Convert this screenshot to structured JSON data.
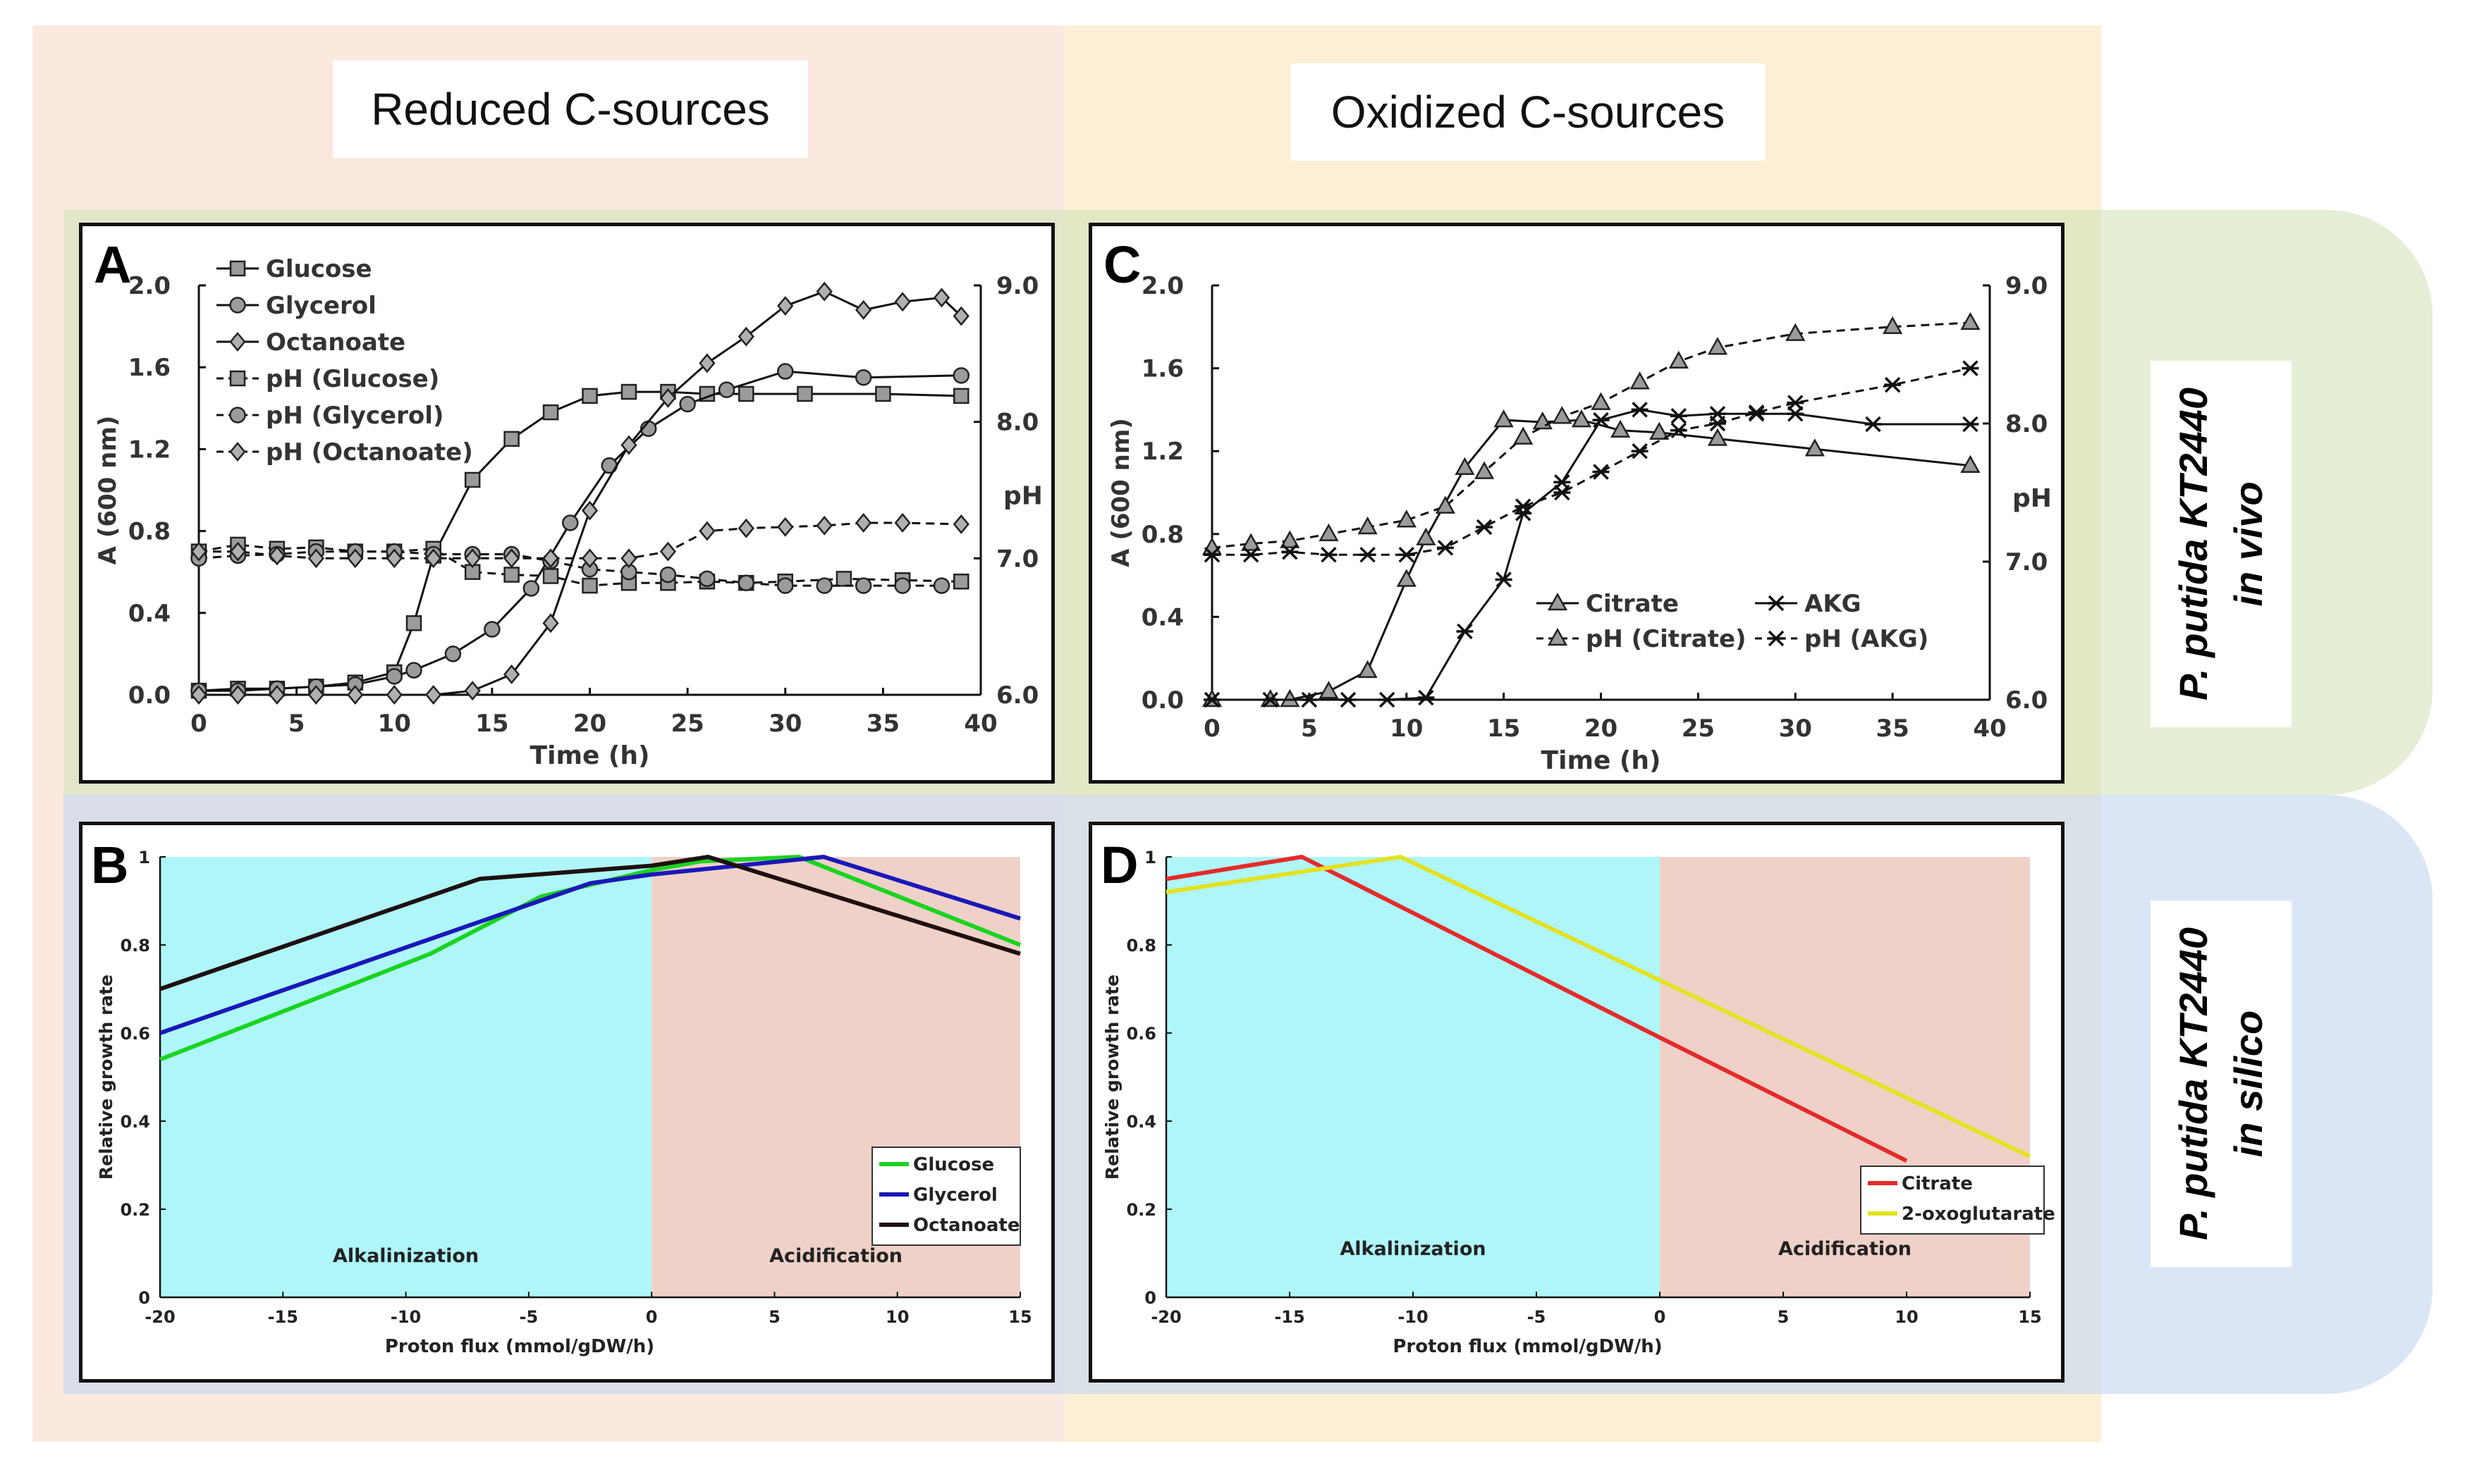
{
  "header": {
    "left": "Reduced C-sources",
    "right": "Oxidized C-sources"
  },
  "side_labels": {
    "top": [
      "P. putida KT2440",
      "in vivo"
    ],
    "bottom": [
      "P. putida KT2440",
      "in silico"
    ]
  },
  "colors": {
    "reduced_bg": "#fbe9e0",
    "oxidized_bg": "#fbf0d6",
    "in_vivo_band": "#e2efd5",
    "in_silico_band": "#dce6f3",
    "alkalinization": "#aff6f9",
    "acidification": "#efd1c8"
  },
  "chart_data": [
    {
      "panel": "A",
      "type": "line",
      "xlabel": "Time (h)",
      "ylabel": "A (600 nm)",
      "y2label": "pH",
      "xlim": [
        0,
        40
      ],
      "ylim": [
        0,
        2.0
      ],
      "y2lim": [
        6.0,
        9.0
      ],
      "xticks": [
        "0",
        "5",
        "10",
        "15",
        "20",
        "25",
        "30",
        "35",
        "40"
      ],
      "yticks": [
        "0.0",
        "0.4",
        "0.8",
        "1.2",
        "1.6",
        "2.0"
      ],
      "y2ticks": [
        "6.0",
        "7.0",
        "8.0",
        "9.0"
      ],
      "series": [
        {
          "name": "Glucose",
          "marker": "square",
          "dash": false,
          "axis": "left",
          "x": [
            0,
            2,
            4,
            6,
            8,
            10,
            11,
            12,
            14,
            16,
            18,
            20,
            22,
            24,
            26,
            28,
            31,
            35,
            39
          ],
          "y": [
            0.02,
            0.03,
            0.03,
            0.04,
            0.06,
            0.11,
            0.35,
            0.68,
            1.05,
            1.25,
            1.38,
            1.46,
            1.48,
            1.48,
            1.47,
            1.47,
            1.47,
            1.47,
            1.46
          ]
        },
        {
          "name": "Glycerol",
          "marker": "circle",
          "dash": false,
          "axis": "left",
          "x": [
            0,
            2,
            4,
            6,
            8,
            10,
            11,
            13,
            15,
            17,
            19,
            21,
            23,
            25,
            27,
            30,
            34,
            39
          ],
          "y": [
            0.02,
            0.02,
            0.03,
            0.04,
            0.05,
            0.09,
            0.12,
            0.2,
            0.32,
            0.52,
            0.84,
            1.12,
            1.3,
            1.42,
            1.49,
            1.58,
            1.55,
            1.56
          ]
        },
        {
          "name": "Octanoate",
          "marker": "diamond",
          "dash": false,
          "axis": "left",
          "x": [
            0,
            2,
            4,
            6,
            8,
            10,
            12,
            14,
            16,
            18,
            20,
            22,
            24,
            26,
            28,
            30,
            32,
            34,
            36,
            38,
            39
          ],
          "y": [
            0.0,
            0.0,
            0.0,
            0.0,
            0.0,
            0.0,
            0.0,
            0.02,
            0.1,
            0.35,
            0.9,
            1.22,
            1.45,
            1.62,
            1.75,
            1.9,
            1.97,
            1.88,
            1.92,
            1.94,
            1.85
          ]
        },
        {
          "name": "pH (Glucose)",
          "marker": "square",
          "dash": true,
          "axis": "right",
          "x": [
            0,
            2,
            4,
            6,
            8,
            10,
            12,
            14,
            16,
            18,
            20,
            22,
            24,
            26,
            28,
            30,
            33,
            36,
            39
          ],
          "y": [
            7.05,
            7.1,
            7.07,
            7.08,
            7.05,
            7.05,
            7.07,
            6.9,
            6.88,
            6.87,
            6.8,
            6.82,
            6.82,
            6.83,
            6.82,
            6.83,
            6.85,
            6.84,
            6.83
          ]
        },
        {
          "name": "pH (Glycerol)",
          "marker": "circle",
          "dash": true,
          "axis": "right",
          "x": [
            0,
            2,
            4,
            6,
            8,
            10,
            12,
            14,
            16,
            18,
            20,
            22,
            24,
            26,
            28,
            30,
            32,
            34,
            36,
            38
          ],
          "y": [
            7.0,
            7.02,
            7.03,
            7.05,
            7.05,
            7.05,
            7.03,
            7.03,
            7.03,
            6.98,
            6.92,
            6.9,
            6.88,
            6.85,
            6.82,
            6.8,
            6.8,
            6.8,
            6.8,
            6.8
          ]
        },
        {
          "name": "pH (Octanoate)",
          "marker": "diamond",
          "dash": true,
          "axis": "right",
          "x": [
            0,
            2,
            4,
            6,
            8,
            10,
            12,
            14,
            16,
            18,
            20,
            22,
            24,
            26,
            28,
            30,
            32,
            34,
            36,
            39
          ],
          "y": [
            7.05,
            7.05,
            7.02,
            7.0,
            7.0,
            7.0,
            7.0,
            7.0,
            7.0,
            7.0,
            7.0,
            7.0,
            7.05,
            7.2,
            7.22,
            7.23,
            7.24,
            7.26,
            7.26,
            7.25
          ]
        }
      ]
    },
    {
      "panel": "C",
      "type": "line",
      "xlabel": "Time (h)",
      "ylabel": "A (600 nm)",
      "y2label": "pH",
      "xlim": [
        0,
        40
      ],
      "ylim": [
        0,
        2.0
      ],
      "y2lim": [
        6.0,
        9.0
      ],
      "xticks": [
        "0",
        "5",
        "10",
        "15",
        "20",
        "25",
        "30",
        "35",
        "40"
      ],
      "yticks": [
        "0.0",
        "0.4",
        "0.8",
        "1.2",
        "1.6",
        "2.0"
      ],
      "y2ticks": [
        "6.0",
        "7.0",
        "8.0",
        "9.0"
      ],
      "series": [
        {
          "name": "Citrate",
          "marker": "triangle",
          "dash": false,
          "axis": "left",
          "x": [
            0,
            3,
            4,
            6,
            8,
            10,
            11,
            13,
            15,
            17,
            19,
            21,
            23,
            26,
            31,
            39
          ],
          "y": [
            0.0,
            0.0,
            0.0,
            0.04,
            0.14,
            0.58,
            0.78,
            1.12,
            1.35,
            1.34,
            1.35,
            1.3,
            1.29,
            1.26,
            1.21,
            1.13
          ]
        },
        {
          "name": "AKG",
          "marker": "asterisk",
          "dash": false,
          "axis": "left",
          "x": [
            0,
            3,
            5,
            7,
            9,
            11,
            13,
            15,
            16,
            18,
            20,
            22,
            24,
            26,
            28,
            30,
            34,
            39
          ],
          "y": [
            0.0,
            0.0,
            0.0,
            0.0,
            0.0,
            0.01,
            0.33,
            0.58,
            0.9,
            1.05,
            1.35,
            1.4,
            1.37,
            1.38,
            1.38,
            1.38,
            1.33,
            1.33
          ]
        },
        {
          "name": "pH (Citrate)",
          "marker": "triangle",
          "dash": true,
          "axis": "right",
          "x": [
            0,
            2,
            4,
            6,
            8,
            10,
            12,
            14,
            16,
            18,
            20,
            22,
            24,
            26,
            30,
            35,
            39
          ],
          "y": [
            7.1,
            7.13,
            7.15,
            7.2,
            7.25,
            7.3,
            7.4,
            7.65,
            7.9,
            8.05,
            8.15,
            8.3,
            8.45,
            8.55,
            8.65,
            8.7,
            8.73
          ]
        },
        {
          "name": "pH (AKG)",
          "marker": "asterisk",
          "dash": true,
          "axis": "right",
          "x": [
            0,
            2,
            4,
            6,
            8,
            10,
            12,
            14,
            16,
            18,
            20,
            22,
            24,
            26,
            28,
            30,
            35,
            39
          ],
          "y": [
            7.05,
            7.05,
            7.07,
            7.05,
            7.05,
            7.05,
            7.1,
            7.25,
            7.4,
            7.5,
            7.65,
            7.8,
            7.95,
            8.0,
            8.08,
            8.15,
            8.28,
            8.4
          ]
        }
      ]
    },
    {
      "panel": "B",
      "type": "line",
      "xlabel": "Proton flux (mmol/gDW/h)",
      "ylabel": "Relative growth rate",
      "xlim": [
        -20,
        15
      ],
      "ylim": [
        0,
        1
      ],
      "xticks": [
        "-20",
        "-15",
        "-10",
        "-5",
        "0",
        "5",
        "10",
        "15"
      ],
      "yticks": [
        "0",
        "0.2",
        "0.4",
        "0.6",
        "0.8",
        "1"
      ],
      "regions": [
        {
          "label": "Alkalinization",
          "from": -20,
          "to": 0,
          "color": "#aff6f9"
        },
        {
          "label": "Acidification",
          "from": 0,
          "to": 15,
          "color": "#efd1c8"
        }
      ],
      "series": [
        {
          "name": "Glucose",
          "color": "#1bd321",
          "x": [
            -20,
            -9,
            -4.5,
            0,
            2,
            6,
            15
          ],
          "y": [
            0.54,
            0.78,
            0.91,
            0.97,
            0.99,
            1.0,
            0.8
          ]
        },
        {
          "name": "Glycerol",
          "color": "#1a18b8",
          "x": [
            -20,
            -2.5,
            0,
            7,
            15
          ],
          "y": [
            0.6,
            0.94,
            0.96,
            1.0,
            0.86
          ]
        },
        {
          "name": "Octanoate",
          "color": "#1e1010",
          "x": [
            -20,
            -7,
            0,
            2.3,
            15
          ],
          "y": [
            0.7,
            0.95,
            0.98,
            1.0,
            0.78
          ]
        }
      ]
    },
    {
      "panel": "D",
      "type": "line",
      "xlabel": "Proton flux (mmol/gDW/h)",
      "ylabel": "Relative growth rate",
      "xlim": [
        -20,
        15
      ],
      "ylim": [
        0,
        1
      ],
      "xticks": [
        "-20",
        "-15",
        "-10",
        "-5",
        "0",
        "5",
        "10",
        "15"
      ],
      "yticks": [
        "0",
        "0.2",
        "0.4",
        "0.6",
        "0.8",
        "1"
      ],
      "regions": [
        {
          "label": "Alkalinization",
          "from": -20,
          "to": 0,
          "color": "#aff6f9"
        },
        {
          "label": "Acidification",
          "from": 0,
          "to": 15,
          "color": "#efd1c8"
        }
      ],
      "series": [
        {
          "name": "Citrate",
          "color": "#e42b2b",
          "x": [
            -20,
            -14.5,
            0,
            10
          ],
          "y": [
            0.95,
            1.0,
            0.59,
            0.31
          ]
        },
        {
          "name": "2-oxoglutarate",
          "color": "#e3e222",
          "x": [
            -20,
            -10.5,
            0,
            15
          ],
          "y": [
            0.92,
            1.0,
            0.72,
            0.32
          ]
        }
      ]
    }
  ]
}
